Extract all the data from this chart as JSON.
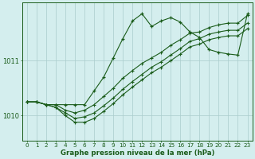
{
  "xlabel": "Graphe pression niveau de la mer (hPa)",
  "background_color": "#d4eeee",
  "grid_color": "#aacccc",
  "line_color": "#1a5c1a",
  "x_ticks": [
    0,
    1,
    2,
    3,
    4,
    5,
    6,
    7,
    8,
    9,
    10,
    11,
    12,
    13,
    14,
    15,
    16,
    17,
    18,
    19,
    20,
    21,
    22,
    23
  ],
  "ylim": [
    1009.55,
    1012.05
  ],
  "yticks": [
    1010,
    1011
  ],
  "line_peak": [
    1010.25,
    1010.25,
    1010.2,
    1010.2,
    1010.2,
    1010.2,
    1010.2,
    1010.45,
    1010.7,
    1011.05,
    1011.4,
    1011.72,
    1011.85,
    1011.62,
    1011.72,
    1011.78,
    1011.7,
    1011.52,
    1011.42,
    1011.2,
    1011.15,
    1011.12,
    1011.1,
    1011.85
  ],
  "line_a": [
    1010.25,
    1010.25,
    1010.2,
    1010.2,
    1010.1,
    1010.05,
    1010.1,
    1010.2,
    1010.35,
    1010.5,
    1010.68,
    1010.82,
    1010.95,
    1011.05,
    1011.15,
    1011.28,
    1011.38,
    1011.5,
    1011.52,
    1011.6,
    1011.65,
    1011.68,
    1011.68,
    1011.82
  ],
  "line_b": [
    1010.25,
    1010.25,
    1010.2,
    1010.15,
    1010.05,
    1009.95,
    1009.98,
    1010.05,
    1010.18,
    1010.32,
    1010.48,
    1010.62,
    1010.75,
    1010.88,
    1010.98,
    1011.1,
    1011.22,
    1011.35,
    1011.4,
    1011.48,
    1011.52,
    1011.55,
    1011.55,
    1011.68
  ],
  "line_c": [
    1010.25,
    1010.25,
    1010.2,
    1010.15,
    1010.0,
    1009.88,
    1009.88,
    1009.95,
    1010.08,
    1010.22,
    1010.38,
    1010.52,
    1010.65,
    1010.78,
    1010.88,
    1011.0,
    1011.12,
    1011.25,
    1011.3,
    1011.38,
    1011.42,
    1011.45,
    1011.45,
    1011.58
  ]
}
